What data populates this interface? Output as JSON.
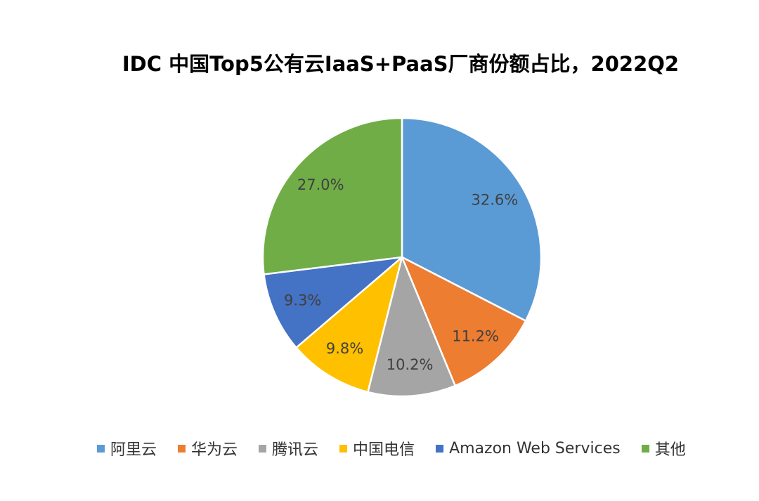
{
  "chart_data": {
    "type": "pie",
    "title": "IDC 中国Top5公有云IaaS+PaaS厂商份额占比，2022Q2",
    "categories": [
      "阿里云",
      "华为云",
      "腾讯云",
      "中国电信",
      "Amazon Web Services",
      "其他"
    ],
    "values": [
      32.6,
      11.2,
      10.2,
      9.8,
      9.3,
      27.0
    ],
    "data_labels": [
      "32.6%",
      "11.2%",
      "10.2%",
      "9.8%",
      "9.3%",
      "27.0%"
    ],
    "colors": [
      "#5b9bd5",
      "#ed7d31",
      "#a5a5a5",
      "#ffc000",
      "#4472c4",
      "#70ad47"
    ],
    "start_angle": "12 o'clock",
    "direction": "clockwise",
    "legend_position": "bottom"
  }
}
